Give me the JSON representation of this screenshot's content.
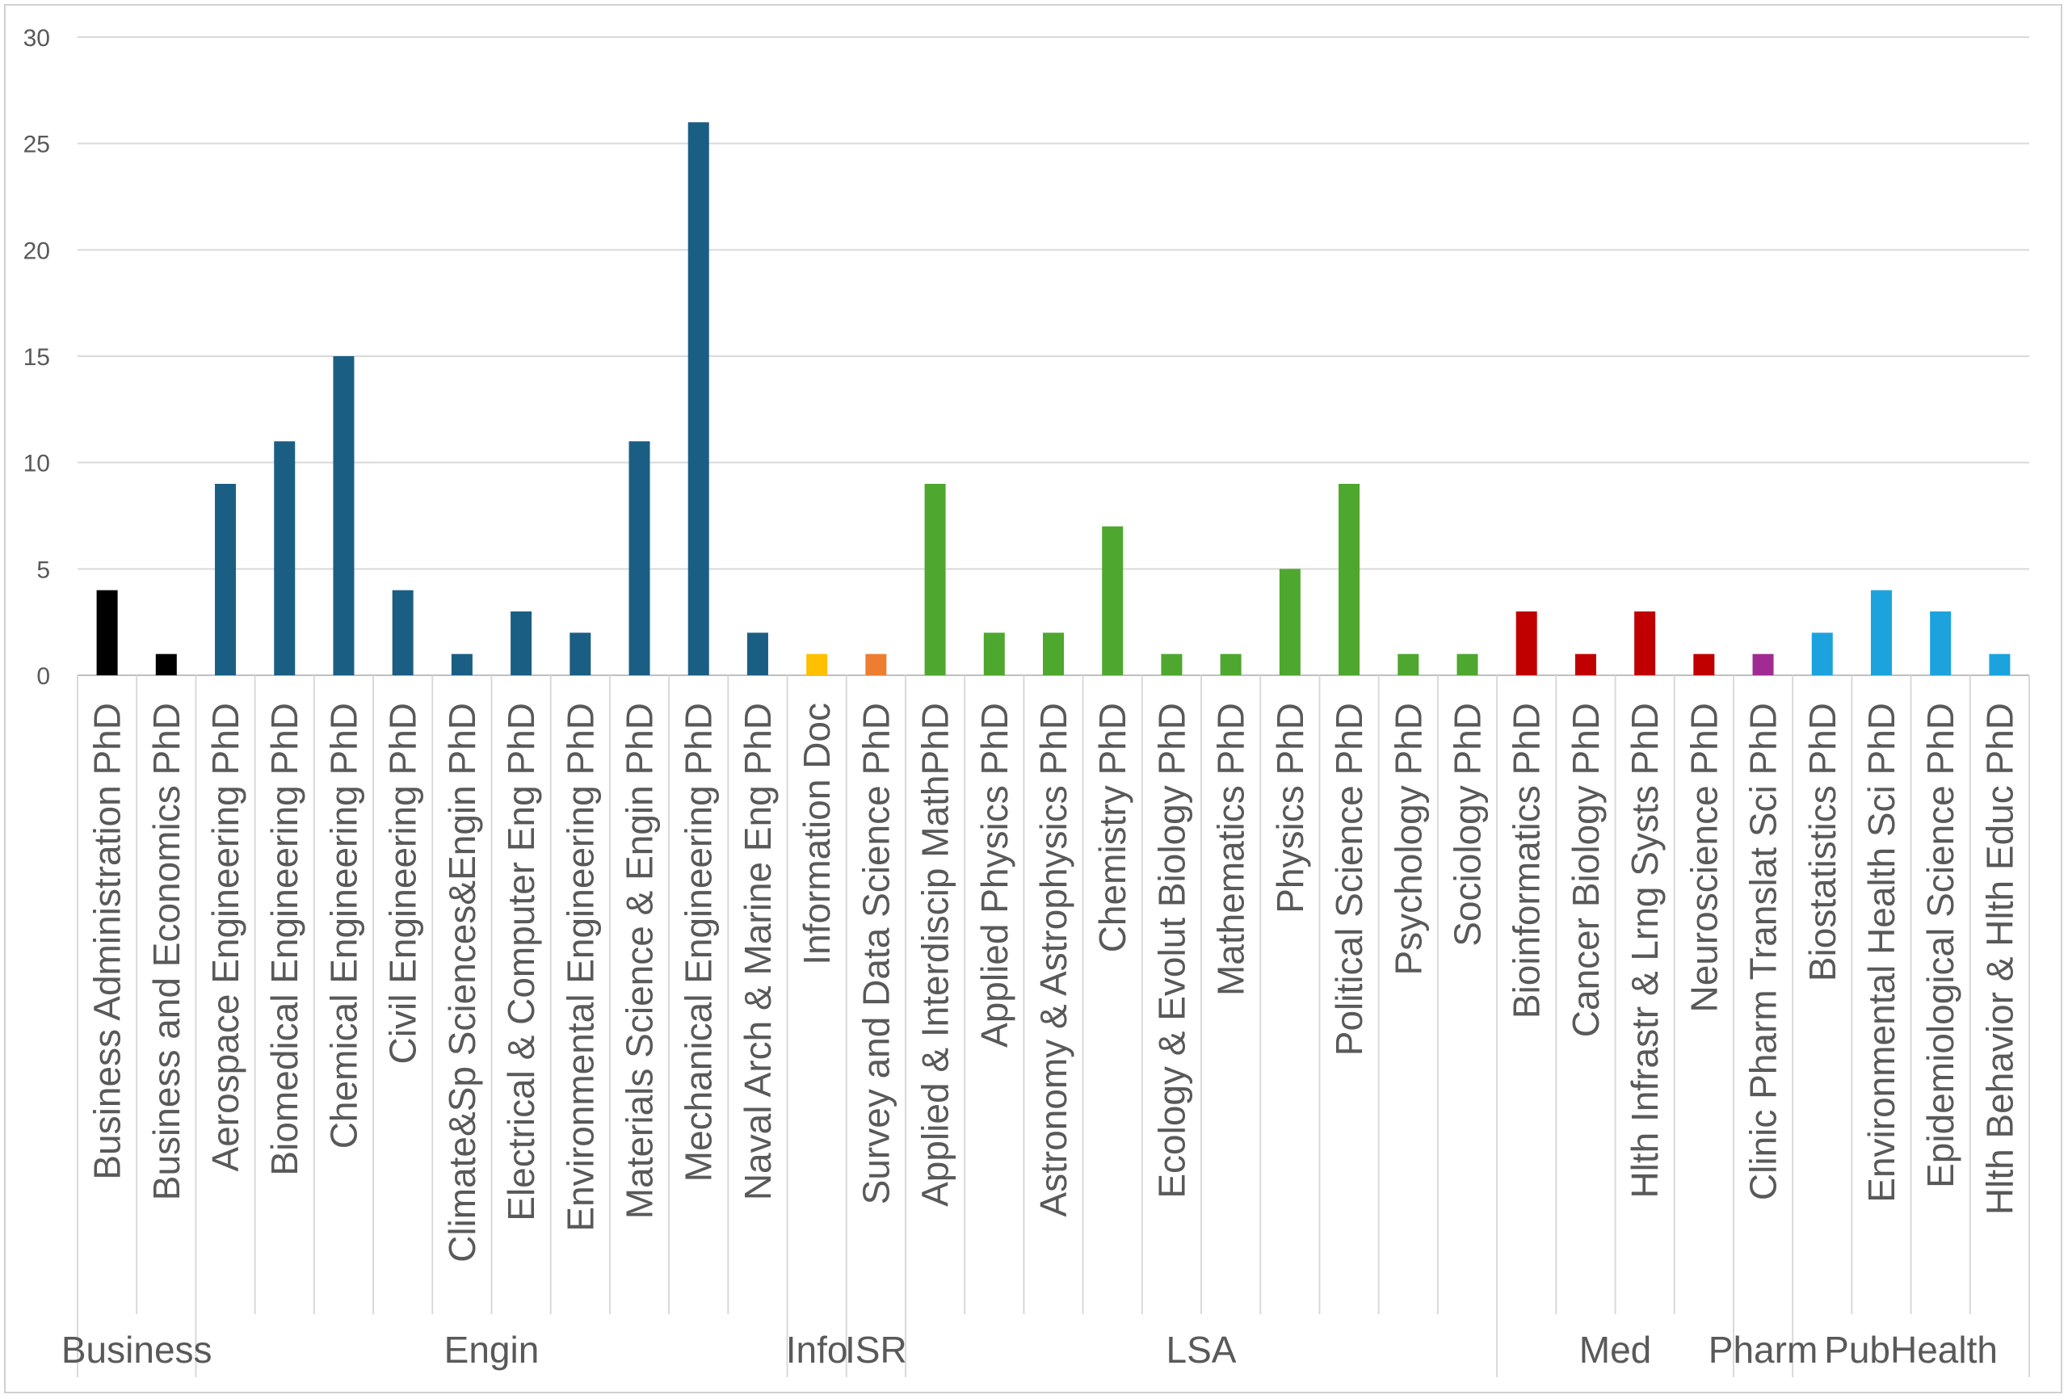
{
  "chart_data": {
    "type": "bar",
    "title": "",
    "xlabel": "",
    "ylabel": "",
    "ylim": [
      0,
      30
    ],
    "yticks": [
      0,
      5,
      10,
      15,
      20,
      25,
      30
    ],
    "grid": true,
    "legend": "none",
    "groups": [
      {
        "name": "Business",
        "color": "#000000",
        "categories": [
          "Business Administration PhD",
          "Business and Economics PhD"
        ],
        "values": [
          4,
          1
        ]
      },
      {
        "name": "Engin",
        "color": "#1a5e84",
        "categories": [
          "Aerospace Engineering PhD",
          "Biomedical Engineering PhD",
          "Chemical Engineering PhD",
          "Civil Engineering PhD",
          "Climate&Sp Sciences&Engin PhD",
          "Electrical & Computer Eng PhD",
          "Environmental Engineering PhD",
          "Materials Science & Engin PhD",
          "Mechanical Engineering PhD",
          "Naval Arch & Marine Eng PhD"
        ],
        "values": [
          9,
          11,
          15,
          4,
          1,
          3,
          2,
          11,
          26,
          2
        ]
      },
      {
        "name": "Info",
        "color": "#ffc000",
        "categories": [
          "Information Doc"
        ],
        "values": [
          1
        ]
      },
      {
        "name": "ISR",
        "color": "#ed7d31",
        "categories": [
          "Survey and Data Science PhD"
        ],
        "values": [
          1
        ]
      },
      {
        "name": "LSA",
        "color": "#4ea72e",
        "categories": [
          "Applied & Interdiscip MathPhD",
          "Applied Physics PhD",
          "Astronomy & Astrophysics PhD",
          "Chemistry PhD",
          "Ecology & Evolut Biology PhD",
          "Mathematics PhD",
          "Physics PhD",
          "Political Science PhD",
          "Psychology PhD",
          "Sociology PhD"
        ],
        "values": [
          9,
          2,
          2,
          7,
          1,
          1,
          5,
          9,
          1,
          1
        ]
      },
      {
        "name": "Med",
        "color": "#c00000",
        "categories": [
          "Bioinformatics PhD",
          "Cancer Biology PhD",
          "Hlth Infrastr & Lrng Systs PhD",
          "Neuroscience PhD"
        ],
        "values": [
          3,
          1,
          3,
          1
        ]
      },
      {
        "name": "Pharm",
        "color": "#a02b93",
        "categories": [
          "Clinic Pharm Translat Sci PhD"
        ],
        "values": [
          1
        ]
      },
      {
        "name": "PubHealth",
        "color": "#1ca3de",
        "categories": [
          "Biostatistics PhD",
          "Environmental Health Sci PhD",
          "Epidemiological Science PhD",
          "Hlth Behavior & Hlth Educ PhD"
        ],
        "values": [
          2,
          4,
          3,
          1
        ]
      }
    ]
  }
}
